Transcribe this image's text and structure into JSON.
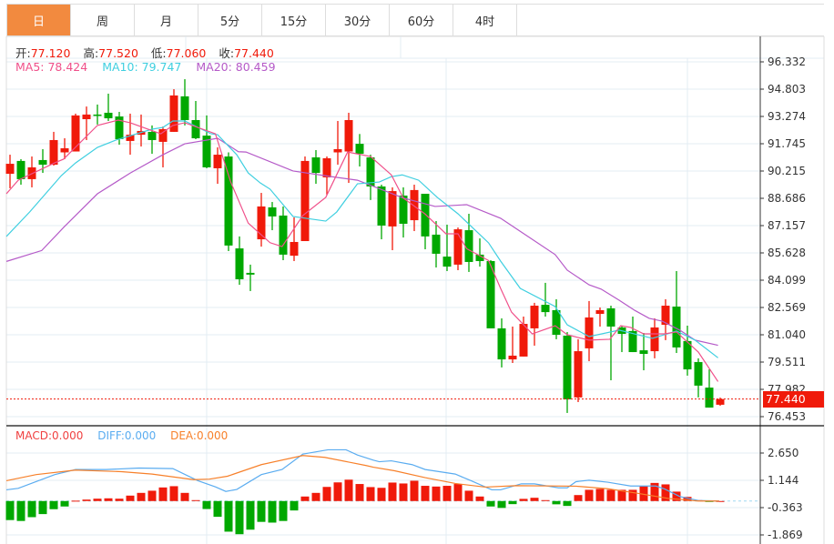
{
  "tabs": [
    {
      "label": "日",
      "active": true
    },
    {
      "label": "周"
    },
    {
      "label": "月"
    },
    {
      "label": "5分"
    },
    {
      "label": "15分"
    },
    {
      "label": "30分"
    },
    {
      "label": "60分"
    },
    {
      "label": "4时"
    }
  ],
  "ohlc_info": {
    "open_label": "开:",
    "open": "77.120",
    "high_label": "高:",
    "high": "77.520",
    "low_label": "低:",
    "low": "77.060",
    "close_label": "收:",
    "close": "77.440"
  },
  "ma_legend": {
    "ma5": "MA5: 78.424",
    "ma10": "MA10: 79.747",
    "ma20": "MA20: 80.459"
  },
  "macd_legend": {
    "macd": "MACD:0.000",
    "diff": "DIFF:0.000",
    "dea": "DEA:0.000"
  },
  "colors": {
    "up": "#f01a0a",
    "down": "#00a800",
    "ma5": "#f0508a",
    "ma10": "#3fcfe0",
    "ma20": "#b55ac8",
    "diff": "#5aacf0",
    "dea": "#f7802a",
    "active_tab": "#f28a3f"
  },
  "current_price": "77.440",
  "chart_data": {
    "type": "candlestick",
    "price_axis": {
      "ticks": [
        "96.332",
        "94.803",
        "93.274",
        "91.745",
        "90.215",
        "88.686",
        "87.157",
        "85.628",
        "84.099",
        "82.569",
        "81.040",
        "79.511",
        "77.982",
        "76.453"
      ],
      "range": [
        76.453,
        96.332
      ]
    },
    "macd_axis": {
      "ticks": [
        "2.650",
        "1.144",
        "-0.363",
        "-1.869"
      ],
      "range": [
        -1.869,
        2.65
      ]
    },
    "candles": [
      [
        90.06,
        91.13,
        89.25,
        90.62
      ],
      [
        90.78,
        90.88,
        89.45,
        89.76
      ],
      [
        89.76,
        91.03,
        89.3,
        90.42
      ],
      [
        90.83,
        91.44,
        90.11,
        90.57
      ],
      [
        90.57,
        92.41,
        90.52,
        91.95
      ],
      [
        91.26,
        92.05,
        90.88,
        91.49
      ],
      [
        91.31,
        93.43,
        91.31,
        93.33
      ],
      [
        93.12,
        93.83,
        91.95,
        93.38
      ],
      [
        93.38,
        93.94,
        92.82,
        93.33
      ],
      [
        93.48,
        94.55,
        93.02,
        93.17
      ],
      [
        93.27,
        93.53,
        91.69,
        92.0
      ],
      [
        91.9,
        93.43,
        91.13,
        92.25
      ],
      [
        92.25,
        93.38,
        91.59,
        92.46
      ],
      [
        92.41,
        92.77,
        91.18,
        91.95
      ],
      [
        91.85,
        92.71,
        90.42,
        92.56
      ],
      [
        92.41,
        94.8,
        92.41,
        94.45
      ],
      [
        94.4,
        95.36,
        92.77,
        93.07
      ],
      [
        93.07,
        94.14,
        92.0,
        92.05
      ],
      [
        92.2,
        93.33,
        90.37,
        90.42
      ],
      [
        90.37,
        91.54,
        89.5,
        91.13
      ],
      [
        91.03,
        91.26,
        85.73,
        86.04
      ],
      [
        85.88,
        86.55,
        83.84,
        84.15
      ],
      [
        84.51,
        84.97,
        83.49,
        84.41
      ],
      [
        86.39,
        88.99,
        85.98,
        88.23
      ],
      [
        88.18,
        88.48,
        86.9,
        87.67
      ],
      [
        87.72,
        88.23,
        85.22,
        85.53
      ],
      [
        85.47,
        87.62,
        85.17,
        86.24
      ],
      [
        86.29,
        91.03,
        86.29,
        90.78
      ],
      [
        90.98,
        91.39,
        89.5,
        90.11
      ],
      [
        89.86,
        91.03,
        88.89,
        90.93
      ],
      [
        91.26,
        93.02,
        90.57,
        91.44
      ],
      [
        91.31,
        93.48,
        89.55,
        93.07
      ],
      [
        91.74,
        92.29,
        90.47,
        91.18
      ],
      [
        90.98,
        91.13,
        88.59,
        89.35
      ],
      [
        89.35,
        89.45,
        86.39,
        87.16
      ],
      [
        87.11,
        89.3,
        85.78,
        89.09
      ],
      [
        88.84,
        89.3,
        86.49,
        87.26
      ],
      [
        87.46,
        89.45,
        86.85,
        89.15
      ],
      [
        88.94,
        88.94,
        85.83,
        86.55
      ],
      [
        86.65,
        87.41,
        84.81,
        85.58
      ],
      [
        85.42,
        87.21,
        84.61,
        84.86
      ],
      [
        84.97,
        87.05,
        84.66,
        86.95
      ],
      [
        86.9,
        87.82,
        84.56,
        85.12
      ],
      [
        85.53,
        86.44,
        84.86,
        85.17
      ],
      [
        85.17,
        85.22,
        81.4,
        81.4
      ],
      [
        81.4,
        81.96,
        79.21,
        79.66
      ],
      [
        79.66,
        81.5,
        79.46,
        79.87
      ],
      [
        79.82,
        82.06,
        79.82,
        81.65
      ],
      [
        81.4,
        82.83,
        80.43,
        82.67
      ],
      [
        82.72,
        83.95,
        82.06,
        82.31
      ],
      [
        82.42,
        83.03,
        80.79,
        81.04
      ],
      [
        80.99,
        81.19,
        76.66,
        77.42
      ],
      [
        77.53,
        80.79,
        77.27,
        80.12
      ],
      [
        80.28,
        82.93,
        79.56,
        82.01
      ],
      [
        82.21,
        82.57,
        81.5,
        82.42
      ],
      [
        82.52,
        82.67,
        78.49,
        81.5
      ],
      [
        81.45,
        81.55,
        80.07,
        81.09
      ],
      [
        81.25,
        82.06,
        80.07,
        80.07
      ],
      [
        80.17,
        81.14,
        79.05,
        79.97
      ],
      [
        80.12,
        81.96,
        79.72,
        81.45
      ],
      [
        81.6,
        83.03,
        80.74,
        82.67
      ],
      [
        82.62,
        84.61,
        80.02,
        80.33
      ],
      [
        80.69,
        81.55,
        78.75,
        79.1
      ],
      [
        79.51,
        79.72,
        77.53,
        78.19
      ],
      [
        78.08,
        79.1,
        76.96,
        76.96
      ],
      [
        77.12,
        77.52,
        77.06,
        77.44
      ]
    ],
    "ma5": [
      [
        -0.33,
        88.94
      ],
      [
        0.75,
        89.7
      ],
      [
        4.08,
        90.67
      ],
      [
        4.9,
        90.88
      ],
      [
        8,
        92.77
      ],
      [
        9.9,
        93.07
      ],
      [
        11,
        92.92
      ],
      [
        13.8,
        92.3
      ],
      [
        14.9,
        92.77
      ],
      [
        16,
        92.92
      ],
      [
        18.8,
        92.3
      ],
      [
        20.2,
        89.6
      ],
      [
        21.8,
        87.3
      ],
      [
        23.8,
        86.2
      ],
      [
        24.9,
        85.98
      ],
      [
        26.8,
        87.72
      ],
      [
        28.9,
        88.74
      ],
      [
        30.9,
        91.28
      ],
      [
        33,
        91.03
      ],
      [
        34.9,
        90.0
      ],
      [
        36,
        88.7
      ],
      [
        38,
        87.8
      ],
      [
        39.9,
        86.7
      ],
      [
        41,
        86.7
      ],
      [
        41.8,
        85.86
      ],
      [
        43.8,
        85.2
      ],
      [
        44.9,
        83.64
      ],
      [
        45.9,
        82.31
      ],
      [
        47.8,
        81.09
      ],
      [
        49.9,
        81.55
      ],
      [
        51,
        81.04
      ],
      [
        53,
        80.74
      ],
      [
        54.9,
        80.79
      ],
      [
        55.9,
        81.55
      ],
      [
        56.8,
        81.45
      ],
      [
        58,
        81.09
      ],
      [
        59.9,
        81.09
      ],
      [
        61,
        81.2
      ],
      [
        63,
        80.07
      ],
      [
        64.8,
        78.42
      ]
    ],
    "ma10": [
      [
        -0.33,
        86.55
      ],
      [
        1.8,
        87.92
      ],
      [
        4.7,
        89.96
      ],
      [
        6,
        90.67
      ],
      [
        8,
        91.54
      ],
      [
        9.7,
        91.95
      ],
      [
        13,
        92.56
      ],
      [
        14,
        92.66
      ],
      [
        14.9,
        93.02
      ],
      [
        16,
        93.02
      ],
      [
        18.4,
        92.3
      ],
      [
        19,
        92.25
      ],
      [
        20.75,
        91.13
      ],
      [
        21.8,
        90.11
      ],
      [
        22.9,
        89.55
      ],
      [
        23.8,
        89.2
      ],
      [
        25.9,
        87.67
      ],
      [
        28.9,
        87.41
      ],
      [
        29.9,
        87.92
      ],
      [
        31.8,
        89.5
      ],
      [
        33.8,
        89.6
      ],
      [
        34.9,
        89.9
      ],
      [
        35.9,
        90.0
      ],
      [
        37.4,
        89.7
      ],
      [
        39.1,
        88.74
      ],
      [
        41,
        87.82
      ],
      [
        43.8,
        86.19
      ],
      [
        44.9,
        85.17
      ],
      [
        46.7,
        83.64
      ],
      [
        49.9,
        82.62
      ],
      [
        51,
        81.6
      ],
      [
        53,
        80.94
      ],
      [
        55.75,
        81.3
      ],
      [
        58.8,
        80.84
      ],
      [
        61,
        81.25
      ],
      [
        62.7,
        80.74
      ],
      [
        64.8,
        79.75
      ]
    ],
    "ma20": [
      [
        -0.33,
        85.15
      ],
      [
        2.9,
        85.76
      ],
      [
        4.9,
        87.05
      ],
      [
        8,
        88.94
      ],
      [
        11,
        90.1
      ],
      [
        14,
        91.13
      ],
      [
        16,
        91.74
      ],
      [
        19,
        92.05
      ],
      [
        20.9,
        91.3
      ],
      [
        21.6,
        91.28
      ],
      [
        25.9,
        90.22
      ],
      [
        29.9,
        89.86
      ],
      [
        31.8,
        89.7
      ],
      [
        36,
        88.7
      ],
      [
        38.9,
        88.23
      ],
      [
        41.8,
        88.33
      ],
      [
        44.9,
        87.57
      ],
      [
        49.9,
        85.53
      ],
      [
        51,
        84.66
      ],
      [
        53,
        83.84
      ],
      [
        54.1,
        83.6
      ],
      [
        55.75,
        82.98
      ],
      [
        57.2,
        82.4
      ],
      [
        58.5,
        81.96
      ],
      [
        59.7,
        81.8
      ],
      [
        61.3,
        81.3
      ],
      [
        62.7,
        80.74
      ],
      [
        64.8,
        80.45
      ]
    ],
    "macd_hist": [
      -1.05,
      -1.1,
      -0.89,
      -0.72,
      -0.45,
      -0.3,
      0.02,
      0.08,
      0.13,
      0.15,
      0.13,
      0.3,
      0.45,
      0.57,
      0.75,
      0.82,
      0.45,
      0.05,
      -0.44,
      -0.87,
      -1.69,
      -1.83,
      -1.58,
      -1.15,
      -1.19,
      -1.1,
      -0.52,
      0.25,
      0.45,
      0.78,
      1.03,
      1.18,
      0.94,
      0.77,
      0.73,
      1.02,
      0.97,
      1.12,
      0.84,
      0.8,
      0.84,
      0.94,
      0.57,
      0.25,
      -0.3,
      -0.38,
      -0.17,
      0.12,
      0.18,
      0.05,
      -0.18,
      -0.27,
      0.33,
      0.62,
      0.67,
      0.62,
      0.62,
      0.62,
      0.82,
      1.0,
      0.92,
      0.52,
      0.23,
      0.05,
      -0.03,
      0.0
    ],
    "diff": [
      [
        -0.33,
        0.62
      ],
      [
        0.75,
        0.7
      ],
      [
        4.1,
        1.46
      ],
      [
        6,
        1.74
      ],
      [
        8.8,
        1.74
      ],
      [
        11.8,
        1.82
      ],
      [
        14.9,
        1.79
      ],
      [
        17.2,
        1.12
      ],
      [
        18.8,
        0.78
      ],
      [
        19.75,
        0.53
      ],
      [
        20.75,
        0.64
      ],
      [
        23,
        1.46
      ],
      [
        24.9,
        1.74
      ],
      [
        26.8,
        2.59
      ],
      [
        29.1,
        2.83
      ],
      [
        30.75,
        2.83
      ],
      [
        31.8,
        2.54
      ],
      [
        33.25,
        2.26
      ],
      [
        33.8,
        2.17
      ],
      [
        34.9,
        2.22
      ],
      [
        36.8,
        2.01
      ],
      [
        38,
        1.74
      ],
      [
        40.75,
        1.49
      ],
      [
        42.2,
        1.12
      ],
      [
        44.1,
        0.62
      ],
      [
        44.9,
        0.62
      ],
      [
        46.8,
        0.95
      ],
      [
        48,
        0.95
      ],
      [
        50.2,
        0.73
      ],
      [
        51,
        0.73
      ],
      [
        51.8,
        1.07
      ],
      [
        53,
        1.15
      ],
      [
        54.7,
        1.04
      ],
      [
        56.8,
        0.83
      ],
      [
        59.1,
        0.83
      ],
      [
        59.9,
        0.67
      ],
      [
        61.3,
        0.25
      ],
      [
        63,
        0.03
      ],
      [
        64.9,
        0.0
      ]
    ],
    "dea": [
      [
        -0.33,
        1.12
      ],
      [
        2.4,
        1.46
      ],
      [
        6,
        1.71
      ],
      [
        10.2,
        1.62
      ],
      [
        13,
        1.49
      ],
      [
        16.8,
        1.18
      ],
      [
        18.25,
        1.21
      ],
      [
        19.9,
        1.37
      ],
      [
        23,
        2.01
      ],
      [
        26.8,
        2.51
      ],
      [
        28.8,
        2.41
      ],
      [
        32.6,
        1.96
      ],
      [
        33.25,
        1.87
      ],
      [
        35.2,
        1.67
      ],
      [
        38,
        1.29
      ],
      [
        40.75,
        0.97
      ],
      [
        43.5,
        0.77
      ],
      [
        46.3,
        0.85
      ],
      [
        51.8,
        0.82
      ],
      [
        54.7,
        0.68
      ],
      [
        57.4,
        0.43
      ],
      [
        60.2,
        0.15
      ],
      [
        63,
        0.0
      ],
      [
        64.9,
        0.0
      ]
    ]
  }
}
